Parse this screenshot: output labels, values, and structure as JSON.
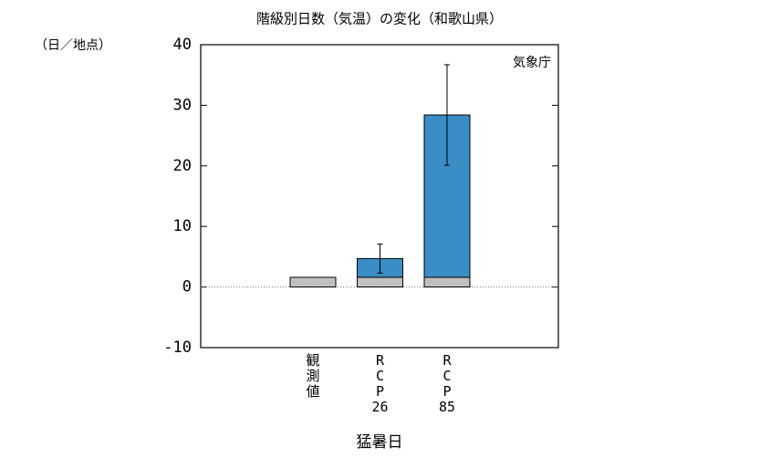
{
  "chart_data": {
    "type": "bar",
    "title": "階級別日数（気温）の変化（和歌山県）",
    "y_unit": "（日／地点）",
    "source": "気象庁",
    "x_label": "猛暑日",
    "categories": [
      "観測値",
      "RCP26",
      "RCP85"
    ],
    "stacked": true,
    "series": [
      {
        "color": "#c0c0c0",
        "values": [
          1.6,
          1.6,
          1.6
        ]
      },
      {
        "color": "#3a8dc5",
        "values": [
          null,
          3.1,
          26.8
        ]
      },
      {
        "color": "#d9604c",
        "values": [
          null,
          null,
          null
        ]
      }
    ],
    "error_low": [
      null,
      2.3,
      20.1
    ],
    "error_high": [
      null,
      7.1,
      36.7
    ],
    "ylim": [
      -10,
      40
    ],
    "yticks": [
      -10,
      0,
      10,
      20,
      30,
      40
    ]
  }
}
